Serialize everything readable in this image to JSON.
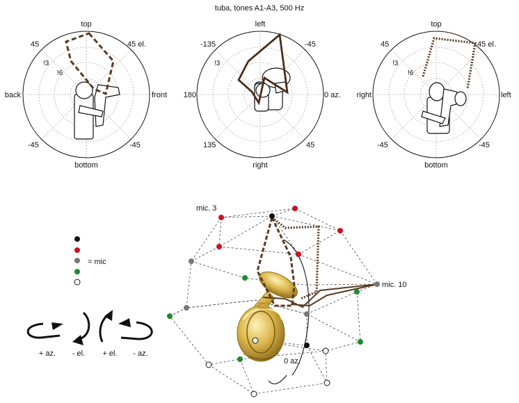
{
  "title": "tuba, tones A1-A3, 500 Hz",
  "colors": {
    "pattern": "#5a3a22",
    "mic_black": "#111111",
    "mic_red": "#cc1122",
    "mic_grey": "#777777",
    "mic_green": "#1f8a2e",
    "mic_white": "#ffffff",
    "tuba_gold": "#d8b448"
  },
  "polar_front": {
    "top": "top",
    "bottom": "bottom",
    "left": "back",
    "right": "front",
    "ul": "45",
    "ur": "45 el.",
    "ll": "-45",
    "lr": "-45",
    "ring1": "!3",
    "ring2": "!6"
  },
  "polar_top": {
    "top": "left",
    "bottom": "right",
    "left": "180",
    "right": "0 az.",
    "ul": "-135",
    "ur": "-45",
    "ll": "135",
    "lr": "45",
    "ring1": "!3"
  },
  "polar_side": {
    "top": "top",
    "bottom": "bottom",
    "left": "right",
    "right": "left",
    "ul": "45",
    "ur": "45 el.",
    "ll": "-45",
    "lr": "-45",
    "ring1": "!3",
    "ring2": "!6"
  },
  "legend": {
    "mic_label": "= mic"
  },
  "rotations": {
    "plus_az": "+ az.",
    "minus_el": "- el.",
    "plus_el": "+ el.",
    "minus_az": "- az."
  },
  "scene": {
    "mic3_label": "mic. 3",
    "mic10_label": "mic. 10",
    "zero_az_label": "0 az."
  }
}
